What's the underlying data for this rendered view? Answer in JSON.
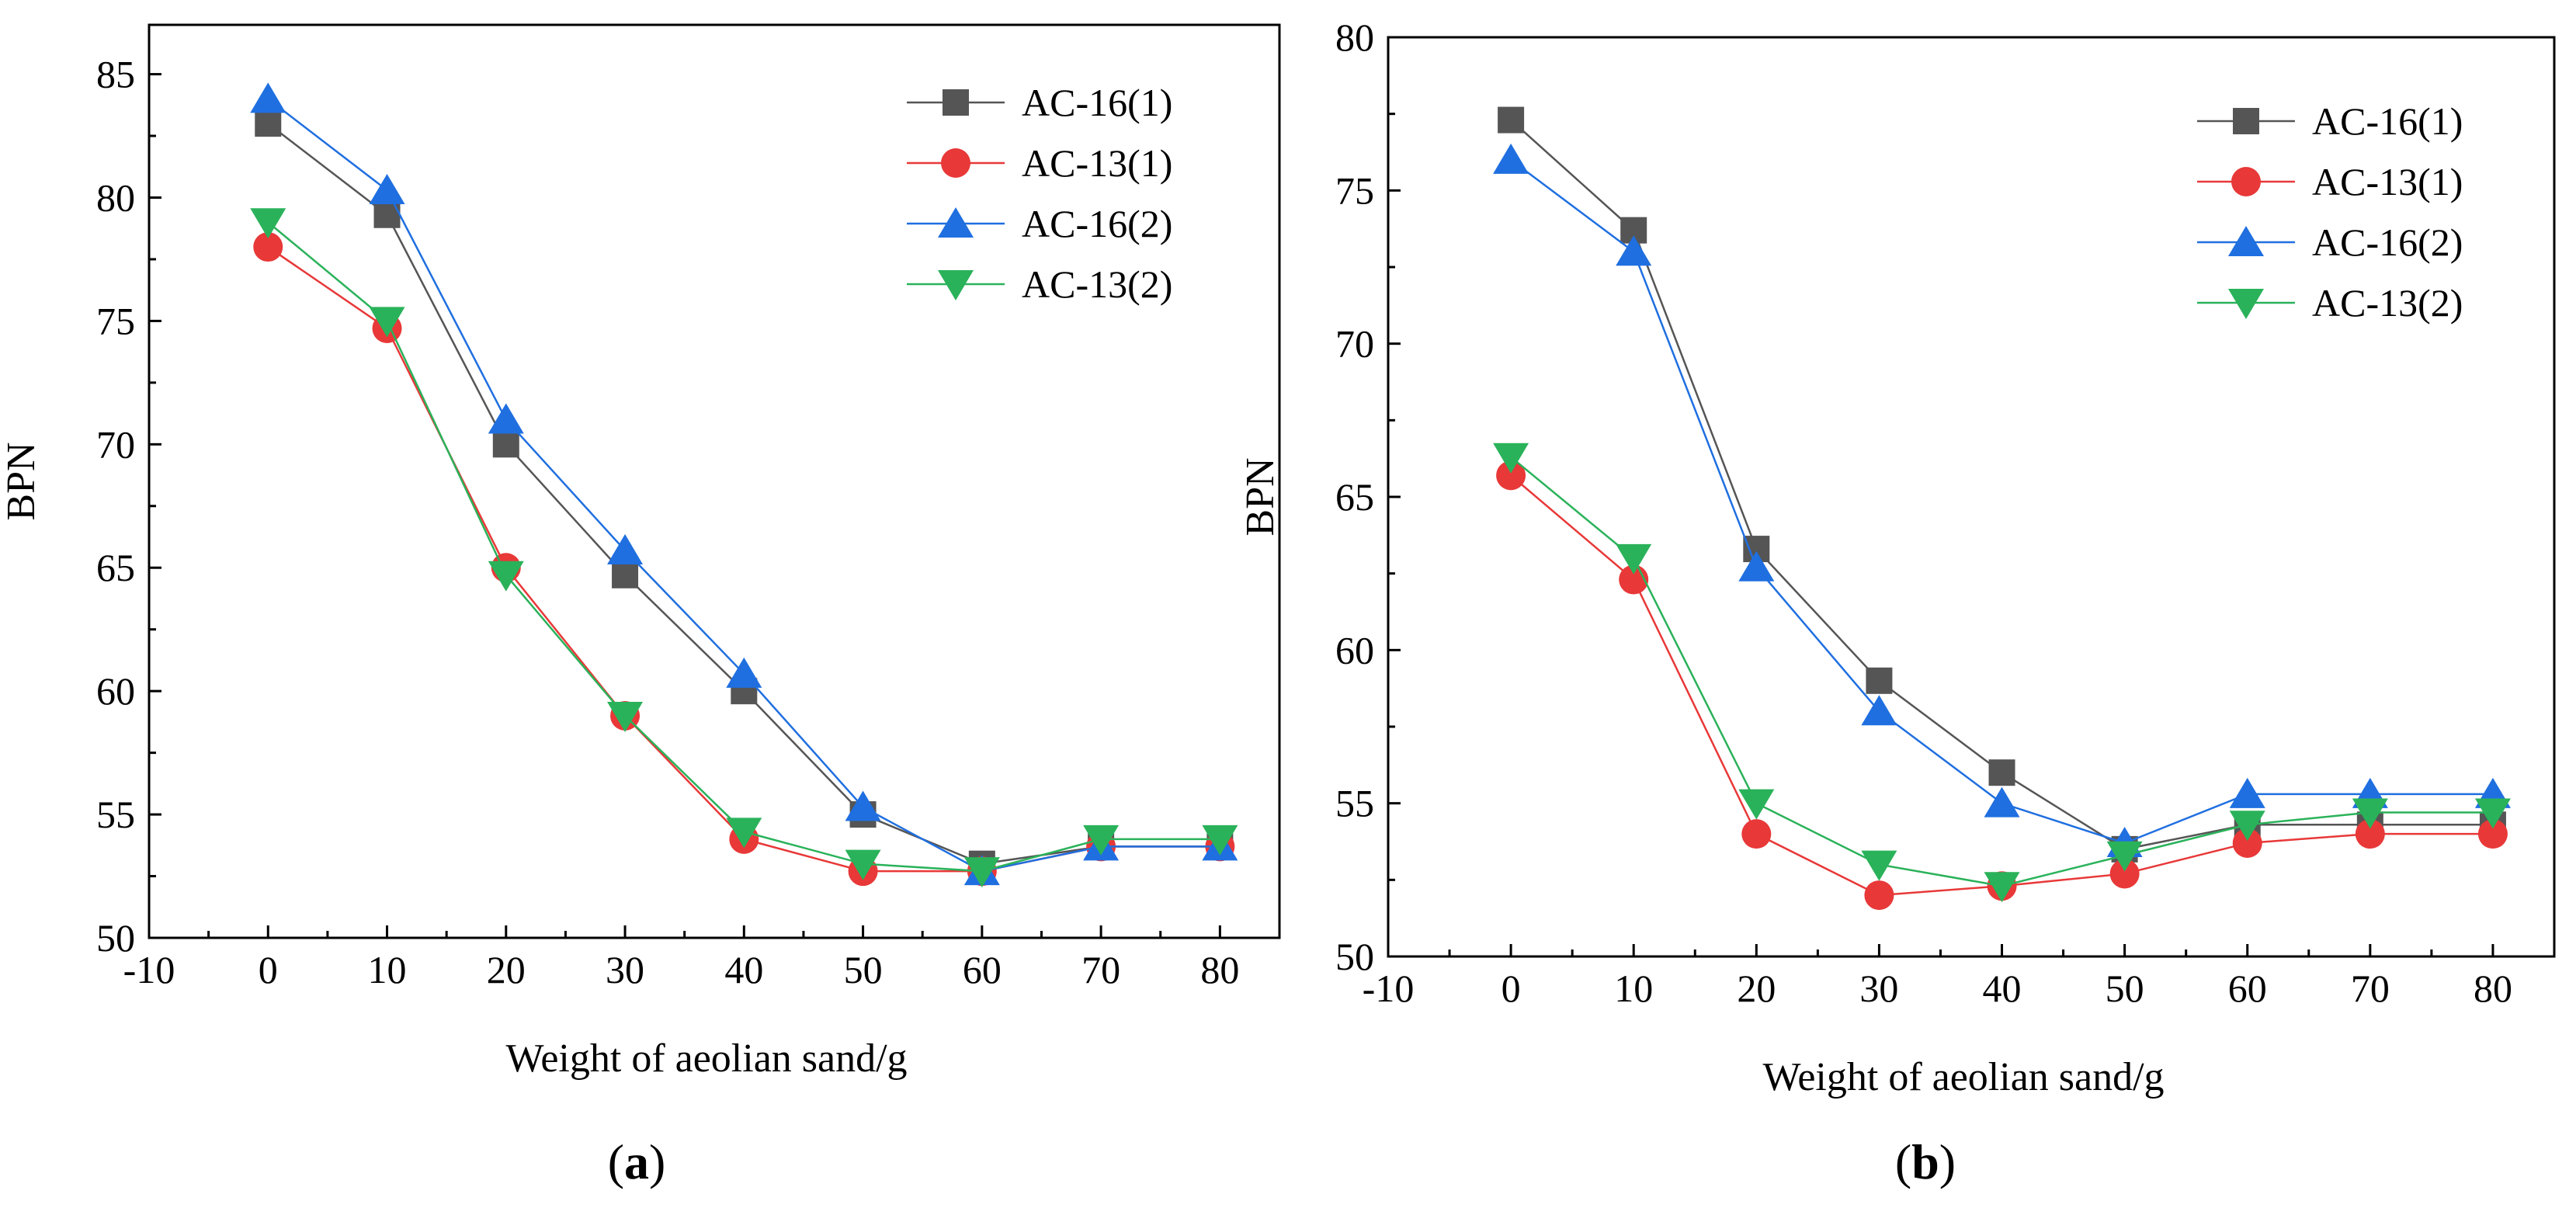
{
  "figure": {
    "panels": [
      {
        "label_open": "(",
        "label_letter": "a",
        "label_close": ")"
      },
      {
        "label_open": "(",
        "label_letter": "b",
        "label_close": ")"
      }
    ]
  },
  "chart_data": [
    {
      "type": "line",
      "panel": "a",
      "xlabel": "Weight of aeolian sand/g",
      "ylabel": "BPN",
      "xlim": [
        -10,
        85
      ],
      "ylim": [
        50,
        87
      ],
      "xticks": [
        -10,
        0,
        10,
        20,
        30,
        40,
        50,
        60,
        70,
        80
      ],
      "yticks": [
        50,
        55,
        60,
        65,
        70,
        75,
        80,
        85
      ],
      "legend_position": "top-right",
      "grid": false,
      "x": [
        0,
        10,
        20,
        30,
        40,
        50,
        60,
        70,
        80
      ],
      "series": [
        {
          "name": "AC-16(1)",
          "color": "#555555",
          "marker": "square",
          "values": [
            83,
            79.3,
            70,
            64.7,
            60,
            55,
            53,
            53.7,
            53.7
          ]
        },
        {
          "name": "AC-13(1)",
          "color": "#e83838",
          "marker": "circle",
          "values": [
            78,
            74.7,
            65,
            59,
            54,
            52.7,
            52.7,
            53.7,
            53.7
          ]
        },
        {
          "name": "AC-16(2)",
          "color": "#1f6fe0",
          "marker": "triangle-up",
          "values": [
            84,
            80.3,
            71,
            65.7,
            60.7,
            55.3,
            52.7,
            53.7,
            53.7
          ]
        },
        {
          "name": "AC-13(2)",
          "color": "#2ab25a",
          "marker": "triangle-down",
          "values": [
            79,
            75,
            64.7,
            59,
            54.3,
            53,
            52.7,
            54,
            54
          ]
        }
      ]
    },
    {
      "type": "line",
      "panel": "b",
      "xlabel": "Weight of aeolian sand/g",
      "ylabel": "BPN",
      "xlim": [
        -10,
        85
      ],
      "ylim": [
        50,
        80
      ],
      "xticks": [
        -10,
        0,
        10,
        20,
        30,
        40,
        50,
        60,
        70,
        80
      ],
      "yticks": [
        50,
        55,
        60,
        65,
        70,
        75,
        80
      ],
      "legend_position": "top-right",
      "grid": false,
      "x": [
        0,
        10,
        20,
        30,
        40,
        50,
        60,
        70,
        80
      ],
      "series": [
        {
          "name": "AC-16(1)",
          "color": "#555555",
          "marker": "square",
          "values": [
            77.3,
            73.7,
            63.3,
            59,
            56,
            53.5,
            54.3,
            54.3,
            54.3
          ]
        },
        {
          "name": "AC-13(1)",
          "color": "#e83838",
          "marker": "circle",
          "values": [
            65.7,
            62.3,
            54,
            52,
            52.3,
            52.7,
            53.7,
            54,
            54
          ]
        },
        {
          "name": "AC-16(2)",
          "color": "#1f6fe0",
          "marker": "triangle-up",
          "values": [
            76,
            73,
            62.7,
            58,
            55,
            53.7,
            55.3,
            55.3,
            55.3
          ]
        },
        {
          "name": "AC-13(2)",
          "color": "#2ab25a",
          "marker": "triangle-down",
          "values": [
            66.3,
            63,
            55,
            53,
            52.3,
            53.3,
            54.3,
            54.7,
            54.7
          ]
        }
      ]
    }
  ]
}
